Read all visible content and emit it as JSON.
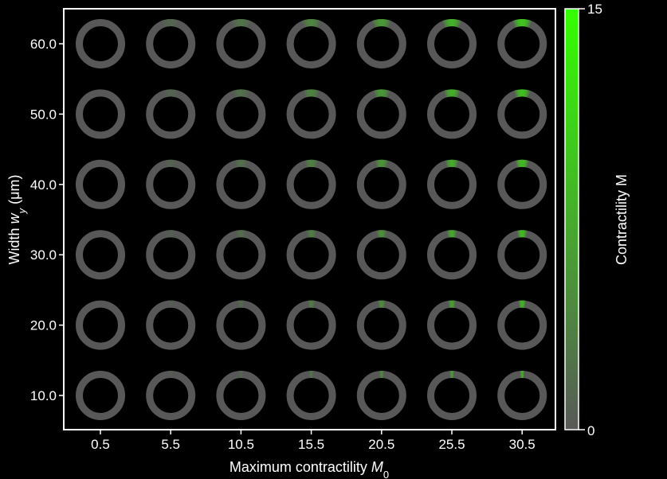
{
  "chart_data": {
    "type": "heatmap",
    "title": "",
    "xlabel": "Maximum contractility",
    "xlabel_symbol": "M",
    "xlabel_subscript": "0",
    "ylabel_prefix": "Width",
    "ylabel_symbol": "w",
    "ylabel_subscript": "y",
    "ylabel_unit": "(μm)",
    "x": [
      "0.5",
      "5.5",
      "10.5",
      "15.5",
      "20.5",
      "25.5",
      "30.5"
    ],
    "y": [
      "10.0",
      "20.0",
      "30.0",
      "40.0",
      "50.0",
      "60.0"
    ],
    "colorbar": {
      "label": "Contractility M",
      "min": 0,
      "max": 15,
      "min_label": "0",
      "max_label": "15",
      "color_low": "#585858",
      "color_high": "#33ff00"
    },
    "ring_color": "#585858",
    "background": "#000000",
    "peak_contractility": [
      [
        0,
        0.6,
        1.5,
        3.0,
        4.8,
        6.5,
        8.2
      ],
      [
        0,
        0.7,
        1.8,
        3.4,
        5.2,
        7.0,
        8.8
      ],
      [
        0,
        0.8,
        2.0,
        3.6,
        5.5,
        7.5,
        9.3
      ],
      [
        0,
        1.0,
        2.2,
        3.8,
        5.8,
        7.8,
        9.6
      ],
      [
        0,
        1.1,
        2.3,
        4.0,
        6.0,
        8.0,
        9.8
      ],
      [
        0,
        1.2,
        2.5,
        4.2,
        6.2,
        8.3,
        10.2
      ]
    ]
  }
}
